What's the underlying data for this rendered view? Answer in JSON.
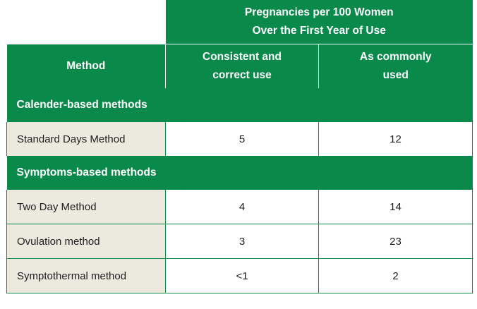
{
  "table": {
    "top_header": {
      "line1": "Pregnancies per 100 Women",
      "line2": "Over the First Year of Use"
    },
    "columns": {
      "method": "Method",
      "consistent_line1": "Consistent and",
      "consistent_line2": "correct use",
      "common_line1": "As commonly",
      "common_line2": "used"
    },
    "sections": [
      {
        "title": "Calender-based methods",
        "rows": [
          {
            "method": "Standard Days Method",
            "consistent": "5",
            "common": "12"
          }
        ]
      },
      {
        "title": "Symptoms-based methods",
        "rows": [
          {
            "method": "Two Day Method",
            "consistent": "4",
            "common": "14"
          },
          {
            "method": "Ovulation method",
            "consistent": "3",
            "common": "23"
          },
          {
            "method": "Symptothermal method",
            "consistent": "<1",
            "common": "2"
          }
        ]
      }
    ],
    "colors": {
      "green": "#0a8a4a",
      "beige": "#ece9df"
    }
  }
}
